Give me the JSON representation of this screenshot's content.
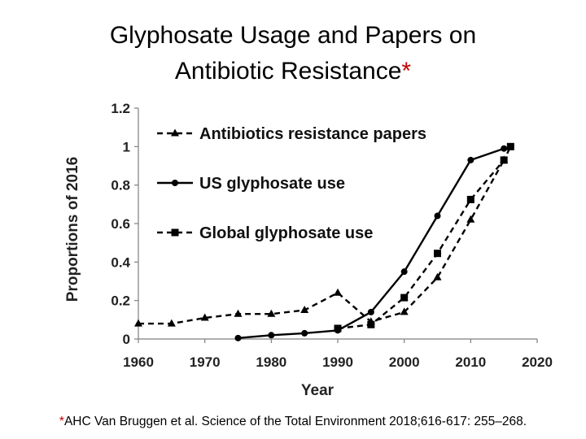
{
  "title_line1": "Glyphosate Usage and Papers on",
  "title_line2": "Antibiotic Resistance",
  "title_asterisk": "*",
  "footnote_asterisk": "*",
  "footnote": "AHC Van Bruggen et al. Science of the Total Environment 2018;616-617: 255–268.",
  "colors": {
    "line": "#000000",
    "asterisk": "#c00000",
    "axis": "#7f7f7f"
  },
  "chart_data": {
    "type": "line",
    "title": "Glyphosate Usage and Papers on Antibiotic Resistance",
    "xlabel": "Year",
    "ylabel": "Proportions of 2016",
    "xlim": [
      1960,
      2020
    ],
    "ylim": [
      0,
      1.2
    ],
    "xticks": [
      1960,
      1970,
      1980,
      1990,
      2000,
      2010,
      2020
    ],
    "yticks": [
      0,
      0.2,
      0.4,
      0.6,
      0.8,
      1,
      1.2
    ],
    "ytick_labels": [
      "0",
      "0.2",
      "0.4",
      "0.6",
      "0.8",
      "1",
      "1.2"
    ],
    "grid": false,
    "legend_position": "top-left",
    "series": [
      {
        "name": "Antibiotics resistance papers",
        "style": "dashed",
        "marker": "triangle",
        "x": [
          1960,
          1965,
          1970,
          1975,
          1980,
          1985,
          1990,
          1995,
          2000,
          2005,
          2010,
          2015
        ],
        "y": [
          0.08,
          0.08,
          0.11,
          0.13,
          0.13,
          0.15,
          0.24,
          0.09,
          0.14,
          0.32,
          0.62,
          0.93
        ]
      },
      {
        "name": "US glyphosate use",
        "style": "solid",
        "marker": "circle",
        "x": [
          1975,
          1980,
          1985,
          1990,
          1995,
          2000,
          2005,
          2010,
          2015,
          2016
        ],
        "y": [
          0.005,
          0.02,
          0.03,
          0.045,
          0.14,
          0.35,
          0.64,
          0.93,
          0.99,
          1.0
        ]
      },
      {
        "name": "Global glyphosate use",
        "style": "dashed",
        "marker": "square",
        "x": [
          1990,
          1995,
          2000,
          2005,
          2010,
          2015,
          2016
        ],
        "y": [
          0.055,
          0.075,
          0.215,
          0.445,
          0.725,
          0.93,
          1.0
        ]
      }
    ]
  }
}
